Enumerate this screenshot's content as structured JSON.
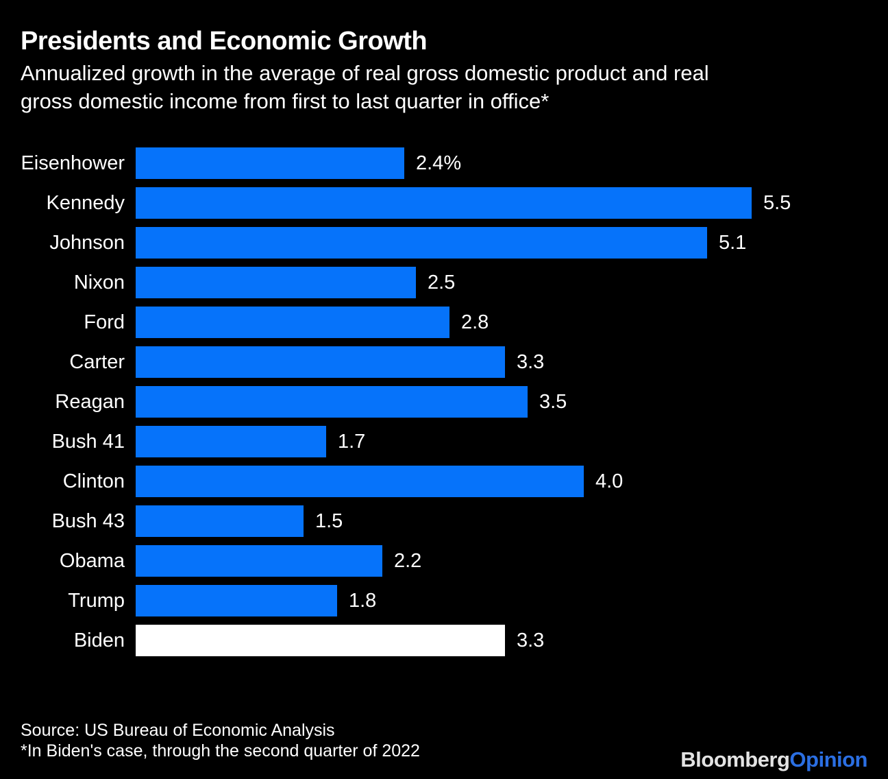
{
  "header": {
    "title": "Presidents and Economic Growth",
    "subtitle_line1": "Annualized growth in the average of real gross domestic product and real",
    "subtitle_line2": "gross domestic income from first to last quarter in office*"
  },
  "footer": {
    "source": "Source: US Bureau of Economic Analysis",
    "footnote": "*In Biden's case, through the second quarter of 2022"
  },
  "branding": {
    "name_primary": "Bloomberg",
    "name_secondary": "Opinion"
  },
  "colors": {
    "background": "#000000",
    "text": "#ffffff",
    "bar": "#0673fa",
    "bar_highlight": "#ffffff",
    "logo_primary": "#e3e3e3",
    "logo_secondary": "#2b6fe3"
  },
  "chart_data": {
    "type": "bar",
    "orientation": "horizontal",
    "title": "Presidents and Economic Growth",
    "subtitle": "Annualized growth in the average of real gross domestic product and real gross domestic income from first to last quarter in office*",
    "categories": [
      "Eisenhower",
      "Kennedy",
      "Johnson",
      "Nixon",
      "Ford",
      "Carter",
      "Reagan",
      "Bush 41",
      "Clinton",
      "Bush 43",
      "Obama",
      "Trump",
      "Biden"
    ],
    "values": [
      2.4,
      5.5,
      5.1,
      2.5,
      2.8,
      3.3,
      3.5,
      1.7,
      4.0,
      1.5,
      2.2,
      1.8,
      3.3
    ],
    "value_labels": [
      "2.4%",
      "5.5",
      "5.1",
      "2.5",
      "2.8",
      "3.3",
      "3.5",
      "1.7",
      "4.0",
      "1.5",
      "2.2",
      "1.8",
      "3.3"
    ],
    "highlight_index": 12,
    "xlim": [
      0,
      5.5
    ],
    "grid": false,
    "legend": "none",
    "value_label_position": "right-of-bar"
  }
}
